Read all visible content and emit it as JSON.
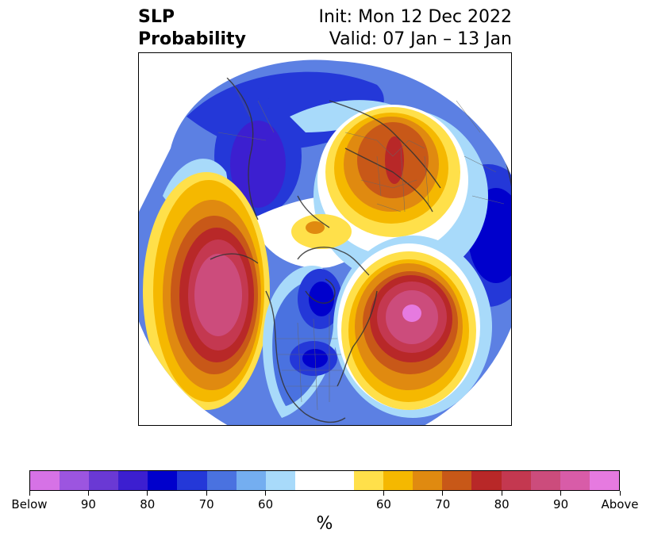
{
  "title": {
    "line1_left": "SLP",
    "line2_left": "Probability",
    "line1_right": "Init: Mon 12 Dec 2022",
    "line2_right": "Valid: 07 Jan – 13 Jan"
  },
  "colorbar": {
    "colors": [
      "#d672e6",
      "#9c55e0",
      "#6a39d4",
      "#3c1fd0",
      "#0000cc",
      "#2438d8",
      "#4a72e0",
      "#74aef0",
      "#a8dafa",
      "#ffffff",
      "#ffe04a",
      "#f5b800",
      "#e08a10",
      "#c85818",
      "#b82828",
      "#c43850",
      "#cc4c7c",
      "#d85ca8",
      "#e67ae0"
    ],
    "tick_labels": [
      "Below",
      "90",
      "80",
      "70",
      "60",
      "60",
      "70",
      "80",
      "90",
      "Above"
    ],
    "unit": "%"
  }
}
